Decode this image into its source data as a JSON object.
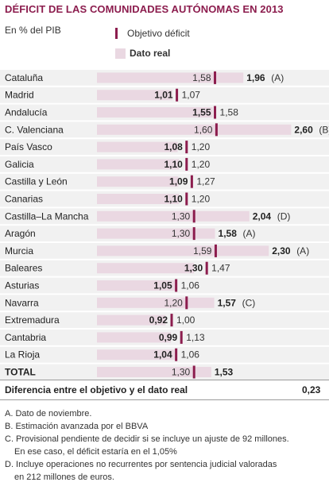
{
  "title": "DÉFICIT DE LAS COMUNIDADES AUTÓNOMAS EN 2013",
  "unit_label": "En % del PIB",
  "legend": {
    "target": "Objetivo déficit",
    "actual": "Dato real"
  },
  "colors": {
    "title": "#8c1d4e",
    "bar": "#ead8e2",
    "tick": "#8c1d4e",
    "row_band": "#f1f1f1"
  },
  "chart_data": {
    "type": "bar",
    "categories": [
      "Cataluña",
      "Madrid",
      "Andalucía",
      "C. Valenciana",
      "País Vasco",
      "Galicia",
      "Castilla y León",
      "Canarias",
      "Castilla–La Mancha",
      "Aragón",
      "Murcia",
      "Baleares",
      "Asturias",
      "Navarra",
      "Extremadura",
      "Cantabria",
      "La Rioja",
      "TOTAL"
    ],
    "series": [
      {
        "name": "Dato real",
        "values": [
          1.96,
          1.01,
          1.55,
          2.6,
          1.08,
          1.1,
          1.09,
          1.1,
          2.04,
          1.58,
          2.3,
          1.3,
          1.05,
          1.57,
          0.92,
          0.99,
          1.04,
          1.53
        ],
        "labels": [
          "1,96",
          "1,01",
          "1,55",
          "2,60",
          "1,08",
          "1,10",
          "1,09",
          "1,10",
          "2,04",
          "1,58",
          "2,30",
          "1,30",
          "1,05",
          "1,57",
          "0,92",
          "0,99",
          "1,04",
          "1,53"
        ]
      },
      {
        "name": "Objetivo déficit",
        "values": [
          1.58,
          1.07,
          1.58,
          1.6,
          1.2,
          1.2,
          1.27,
          1.2,
          1.3,
          1.3,
          1.59,
          1.47,
          1.06,
          1.2,
          1.0,
          1.13,
          1.06,
          1.3
        ],
        "labels": [
          "1,58",
          "1,07",
          "1,58",
          "1,60",
          "1,20",
          "1,20",
          "1,27",
          "1,20",
          "1,30",
          "1,30",
          "1,59",
          "1,47",
          "1,06",
          "1,20",
          "1,00",
          "1,13",
          "1,06",
          "1,30"
        ]
      }
    ],
    "notes": [
      "(A)",
      "",
      "",
      "(B)",
      "",
      "",
      "",
      "",
      "(D)",
      "(A)",
      "(A)",
      "",
      "",
      "(C)",
      "",
      "",
      "",
      ""
    ],
    "xlim": [
      0,
      2.6
    ],
    "grid": false
  },
  "summary": {
    "label": "Diferencia entre el objetivo y el dato real",
    "value": "0,23"
  },
  "footnotes": [
    "A. Dato de noviembre.",
    "B. Estimación avanzada por el BBVA",
    "C. Provisional pendiente de decidir si se incluye un ajuste de 92 millones.",
    "En ese caso, el déficit estaría en el 1,05%",
    "D. Incluye operaciones no recurrentes por sentencia judicial valoradas",
    "en 212 millones de euros."
  ]
}
